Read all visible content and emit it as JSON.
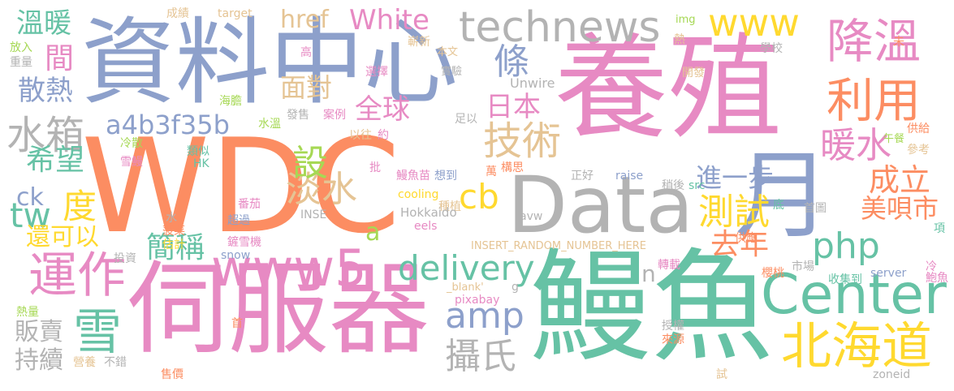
{
  "palette": {
    "orange": "#fc8d62",
    "green": "#66c2a5",
    "blue": "#8da0cb",
    "pink": "#e78ac3",
    "lime": "#a6d854",
    "yellow": "#ffd92f",
    "tan": "#e5c494",
    "gray": "#b3b3b3"
  },
  "words": [
    {
      "text": "WDC",
      "color": "orange",
      "rank": 1
    },
    {
      "text": "養殖",
      "color": "pink",
      "rank": 2
    },
    {
      "text": "鰻魚",
      "color": "green",
      "rank": 3
    },
    {
      "text": "資料中心",
      "color": "blue",
      "rank": 4
    },
    {
      "text": "伺服器",
      "color": "pink",
      "rank": 5
    },
    {
      "text": "Data",
      "color": "gray",
      "rank": 6
    },
    {
      "text": "technews",
      "color": "gray",
      "rank": 7
    },
    {
      "text": "月",
      "color": "blue",
      "rank": 8
    },
    {
      "text": "Center",
      "color": "green",
      "rank": 9
    },
    {
      "text": "www5",
      "color": "pink",
      "rank": 10
    },
    {
      "text": "運作",
      "color": "pink",
      "rank": 11
    },
    {
      "text": "北海道",
      "color": "yellow",
      "rank": 12
    },
    {
      "text": "雪",
      "color": "green",
      "rank": 13
    },
    {
      "text": "www",
      "color": "yellow",
      "rank": 14
    },
    {
      "text": "降溫",
      "color": "pink",
      "rank": 15
    },
    {
      "text": "利用",
      "color": "orange",
      "rank": 16
    },
    {
      "text": "delivery",
      "color": "green",
      "rank": 17
    },
    {
      "text": "技術",
      "color": "tan",
      "rank": 18
    },
    {
      "text": "水箱",
      "color": "gray",
      "rank": 19
    },
    {
      "text": "amp",
      "color": "blue",
      "rank": 20
    },
    {
      "text": "測試",
      "color": "yellow",
      "rank": 21
    },
    {
      "text": "攝氏",
      "color": "gray",
      "rank": 22
    },
    {
      "text": "php",
      "color": "green",
      "rank": 23
    },
    {
      "text": "暖水",
      "color": "pink",
      "rank": 24
    },
    {
      "text": "White",
      "color": "pink",
      "rank": 25
    },
    {
      "text": "a4b3f35b",
      "color": "blue",
      "rank": 26
    },
    {
      "text": "全球",
      "color": "pink",
      "rank": 27
    },
    {
      "text": "tw",
      "color": "green",
      "rank": 28
    },
    {
      "text": "cb",
      "color": "yellow",
      "rank": 29
    },
    {
      "text": "度",
      "color": "yellow",
      "rank": 30
    },
    {
      "text": "條",
      "color": "blue",
      "rank": 31
    },
    {
      "text": "日本",
      "color": "pink",
      "rank": 32
    },
    {
      "text": "面對",
      "color": "tan",
      "rank": 33
    },
    {
      "text": "成立",
      "color": "orange",
      "rank": 34
    },
    {
      "text": "去年",
      "color": "orange",
      "rank": 35
    },
    {
      "text": "美唄市",
      "color": "orange",
      "rank": 36
    },
    {
      "text": "進一步",
      "color": "blue",
      "rank": 37
    },
    {
      "text": "淡水",
      "color": "tan",
      "rank": 38
    },
    {
      "text": "溫暖",
      "color": "green",
      "rank": 39
    },
    {
      "text": "散熱",
      "color": "blue",
      "rank": 40
    },
    {
      "text": "希望",
      "color": "green",
      "rank": 41
    },
    {
      "text": "簡稱",
      "color": "green",
      "rank": 42
    },
    {
      "text": "還可以",
      "color": "yellow",
      "rank": 43
    },
    {
      "text": "販賣",
      "color": "gray",
      "rank": 44
    },
    {
      "text": "持續",
      "color": "gray",
      "rank": 45
    },
    {
      "text": "設",
      "color": "lime",
      "rank": 46
    },
    {
      "text": "href",
      "color": "tan",
      "rank": 47
    },
    {
      "text": "ck",
      "color": "blue",
      "rank": 48
    },
    {
      "text": "間",
      "color": "pink",
      "rank": 49
    },
    {
      "text": "a",
      "color": "lime",
      "rank": 50
    },
    {
      "text": "n",
      "color": "gray",
      "rank": 51
    },
    {
      "text": "成績",
      "color": "tan",
      "rank": 52
    },
    {
      "text": "target",
      "color": "tan",
      "rank": 53
    },
    {
      "text": "img",
      "color": "lime",
      "rank": 54
    },
    {
      "text": "嶄新",
      "color": "tan",
      "rank": 55
    },
    {
      "text": "高",
      "color": "pink",
      "rank": 56
    },
    {
      "text": "本文",
      "color": "tan",
      "rank": 57
    },
    {
      "text": "熱",
      "color": "tan",
      "rank": 58
    },
    {
      "text": "未",
      "color": "orange",
      "rank": 59
    },
    {
      "text": "學校",
      "color": "gray",
      "rank": 60
    },
    {
      "text": "放入",
      "color": "lime",
      "rank": 61
    },
    {
      "text": "重量",
      "color": "gray",
      "rank": 62
    },
    {
      "text": "開發",
      "color": "tan",
      "rank": 63
    },
    {
      "text": "實驗",
      "color": "gray",
      "rank": 64
    },
    {
      "text": "選擇",
      "color": "pink",
      "rank": 65
    },
    {
      "text": "Unwire",
      "color": "gray",
      "rank": 66
    },
    {
      "text": "海膽",
      "color": "lime",
      "rank": 67
    },
    {
      "text": "發售",
      "color": "gray",
      "rank": 68
    },
    {
      "text": "案例",
      "color": "pink",
      "rank": 69
    },
    {
      "text": "水溫",
      "color": "lime",
      "rank": 70
    },
    {
      "text": "以往",
      "color": "tan",
      "rank": 71
    },
    {
      "text": "約",
      "color": "pink",
      "rank": 72
    },
    {
      "text": "足以",
      "color": "gray",
      "rank": 73
    },
    {
      "text": "冷散",
      "color": "lime",
      "rank": 74
    },
    {
      "text": "午餐",
      "color": "lime",
      "rank": 75
    },
    {
      "text": "供給",
      "color": "orange",
      "rank": 76
    },
    {
      "text": "參考",
      "color": "tan",
      "rank": 77
    },
    {
      "text": "類似",
      "color": "green",
      "rank": 78
    },
    {
      "text": "雪鰻",
      "color": "pink",
      "rank": 79
    },
    {
      "text": "HK",
      "color": "green",
      "rank": 80
    },
    {
      "text": "批",
      "color": "pink",
      "rank": 81
    },
    {
      "text": "鰻魚苗",
      "color": "pink",
      "rank": 82
    },
    {
      "text": "想到",
      "color": "blue",
      "rank": 83
    },
    {
      "text": "萬",
      "color": "orange",
      "rank": 84
    },
    {
      "text": "構思",
      "color": "orange",
      "rank": 85
    },
    {
      "text": "正好",
      "color": "gray",
      "rank": 86
    },
    {
      "text": "raise",
      "color": "blue",
      "rank": 87
    },
    {
      "text": "稍後",
      "color": "gray",
      "rank": 88
    },
    {
      "text": "src",
      "color": "green",
      "rank": 89
    },
    {
      "text": "cooling",
      "color": "yellow",
      "rank": 90
    },
    {
      "text": "種植",
      "color": "tan",
      "rank": 91
    },
    {
      "text": "底",
      "color": "green",
      "rank": 92
    },
    {
      "text": "首圖",
      "color": "gray",
      "rank": 93
    },
    {
      "text": "番茄",
      "color": "pink",
      "rank": 94
    },
    {
      "text": "水",
      "color": "gray",
      "rank": 95
    },
    {
      "text": "Hokkaido",
      "color": "gray",
      "rank": 96
    },
    {
      "text": "INSE",
      "color": "gray",
      "rank": 97
    },
    {
      "text": "avw",
      "color": "gray",
      "rank": 98
    },
    {
      "text": "菠菜",
      "color": "orange",
      "rank": 99
    },
    {
      "text": "超過",
      "color": "blue",
      "rank": 100
    },
    {
      "text": "eels",
      "color": "pink",
      "rank": 101
    },
    {
      "text": "估計",
      "color": "yellow",
      "rank": 102
    },
    {
      "text": "鏟雪機",
      "color": "pink",
      "rank": 103
    },
    {
      "text": "INSERT_RANDOM_NUMBER_HERE",
      "color": "tan",
      "rank": 104
    },
    {
      "text": "供應",
      "color": "orange",
      "rank": 105
    },
    {
      "text": "投資",
      "color": "gray",
      "rank": 106
    },
    {
      "text": "snow",
      "color": "blue",
      "rank": 107
    },
    {
      "text": "轉載",
      "color": "pink",
      "rank": 108
    },
    {
      "text": "市場",
      "color": "gray",
      "rank": 109
    },
    {
      "text": "櫻桃",
      "color": "orange",
      "rank": 110
    },
    {
      "text": "server",
      "color": "blue",
      "rank": 111
    },
    {
      "text": "冷",
      "color": "pink",
      "rank": 112
    },
    {
      "text": "鮑魚",
      "color": "pink",
      "rank": 113
    },
    {
      "text": "收集到",
      "color": "green",
      "rank": 114
    },
    {
      "text": "_blank'",
      "color": "tan",
      "rank": 115
    },
    {
      "text": "g",
      "color": "gray",
      "rank": 116
    },
    {
      "text": "pixabay",
      "color": "pink",
      "rank": 117
    },
    {
      "text": "熱量",
      "color": "lime",
      "rank": 118
    },
    {
      "text": "首",
      "color": "orange",
      "rank": 119
    },
    {
      "text": "授權",
      "color": "gray",
      "rank": 120
    },
    {
      "text": "來源",
      "color": "orange",
      "rank": 121
    },
    {
      "text": "營養",
      "color": "tan",
      "rank": 122
    },
    {
      "text": "不錯",
      "color": "gray",
      "rank": 123
    },
    {
      "text": "售價",
      "color": "orange",
      "rank": 124
    },
    {
      "text": "試",
      "color": "tan",
      "rank": 125
    },
    {
      "text": "zoneid",
      "color": "gray",
      "rank": 126
    },
    {
      "text": "項",
      "color": "green",
      "rank": 127
    }
  ]
}
